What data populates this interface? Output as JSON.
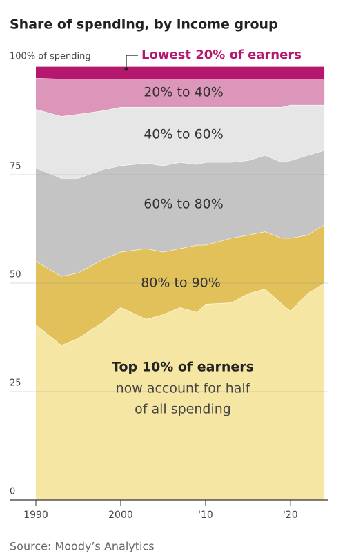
{
  "chart_data": {
    "type": "stacked-area",
    "title": "Share of spending, by income group",
    "source": "Source: Moody’s Analytics",
    "annotation": [
      "now account for half",
      "of all spending"
    ],
    "x": [
      1990,
      1993,
      1995,
      1998,
      2000,
      2003,
      2005,
      2007,
      2009,
      2010,
      2013,
      2015,
      2017,
      2019,
      2020,
      2022,
      2024
    ],
    "xlim": [
      1990,
      2024.4
    ],
    "xticks": [
      1990,
      2000,
      {
        "value": 2010,
        "label": "'10"
      },
      {
        "value": 2020,
        "label": "'20"
      }
    ],
    "ylim": [
      0,
      100
    ],
    "yticks": [
      0,
      25,
      50,
      75,
      {
        "value": 100,
        "label": "100% of spending"
      }
    ],
    "grid": true,
    "series": [
      {
        "name": "Top 10% of earners",
        "color": "#f5e6a3",
        "values": [
          40.4,
          35.7,
          37.3,
          41.2,
          44.4,
          41.7,
          42.8,
          44.4,
          43.3,
          45.2,
          45.5,
          47.6,
          48.7,
          45.2,
          43.6,
          47.6,
          50.0
        ]
      },
      {
        "name": "80% to 90%",
        "color": "#e2c15b",
        "values": [
          14.7,
          15.9,
          15.1,
          14.4,
          12.8,
          16.3,
          14.4,
          13.6,
          15.5,
          13.6,
          14.9,
          13.5,
          13.2,
          15.2,
          16.8,
          13.5,
          13.5
        ]
      },
      {
        "name": "60% to 80%",
        "color": "#c4c4c4",
        "values": [
          21.5,
          22.6,
          21.8,
          20.7,
          19.9,
          19.7,
          19.9,
          19.9,
          18.6,
          19.1,
          17.5,
          17.2,
          17.6,
          17.5,
          17.9,
          18.4,
          17.1
        ]
      },
      {
        "name": "40% to 60%",
        "color": "#e6e6e6",
        "values": [
          13.5,
          14.3,
          14.8,
          13.5,
          13.5,
          12.9,
          13.5,
          12.7,
          13.2,
          12.7,
          12.7,
          12.3,
          11.1,
          12.7,
          12.8,
          11.6,
          10.5
        ]
      },
      {
        "name": "20% to 40%",
        "color": "#dc96b9",
        "values": [
          7.2,
          8.6,
          8.1,
          7.3,
          6.5,
          6.5,
          6.5,
          6.5,
          6.5,
          6.5,
          6.5,
          6.5,
          6.5,
          6.5,
          6.0,
          6.0,
          6.0
        ]
      },
      {
        "name": "Lowest 20% of earners",
        "color": "#b5176e",
        "values": [
          2.7,
          2.9,
          2.9,
          2.9,
          2.9,
          2.9,
          2.9,
          2.9,
          2.9,
          2.9,
          2.9,
          2.9,
          2.9,
          2.9,
          2.9,
          2.9,
          2.9
        ]
      }
    ]
  }
}
